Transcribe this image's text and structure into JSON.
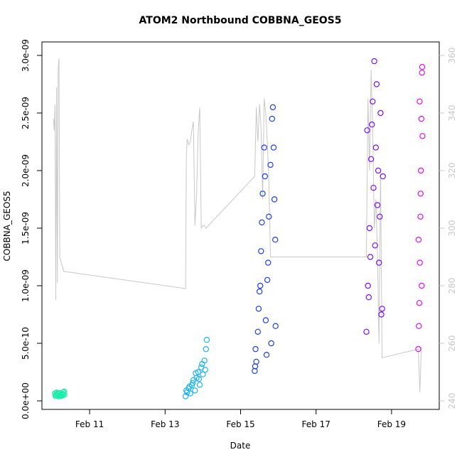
{
  "chart_data": {
    "type": "scatter",
    "title": "ATOM2 Northbound COBBNA_GEOS5",
    "xlabel": "Date",
    "ylabel": "COBBNA_GEOS5",
    "x_unit": "date (2017)",
    "xlim": [
      "2017-02-10T00:00",
      "2017-02-20T00:00"
    ],
    "ylim": [
      0,
      3e-09
    ],
    "y2lim": [
      240,
      360
    ],
    "x_ticks": [
      "2017-02-11",
      "2017-02-13",
      "2017-02-15",
      "2017-02-17",
      "2017-02-19"
    ],
    "x_tick_labels": [
      "Feb 11",
      "Feb 13",
      "Feb 15",
      "Feb 17",
      "Feb 19"
    ],
    "y_ticks": [
      0,
      5e-10,
      1e-09,
      1.5e-09,
      2e-09,
      2.5e-09,
      3e-09
    ],
    "y_tick_labels": [
      "0.0e+00",
      "5.0e-10",
      "1.0e-09",
      "1.5e-09",
      "2.0e-09",
      "2.5e-09",
      "3.0e-09"
    ],
    "y2_ticks": [
      240,
      260,
      280,
      300,
      320,
      340,
      360
    ],
    "y2_tick_labels": [
      "240",
      "260",
      "280",
      "300",
      "320",
      "340",
      "360"
    ],
    "grid": false,
    "legend": "none",
    "marker": "open-circle",
    "series": [
      {
        "color": "#19eea8",
        "x": [
          "2017-02-10T02:00",
          "2017-02-10T02:30",
          "2017-02-10T03:00",
          "2017-02-10T03:30",
          "2017-02-10T04:00",
          "2017-02-10T04:30",
          "2017-02-10T05:00",
          "2017-02-10T05:30",
          "2017-02-10T06:00",
          "2017-02-10T06:30",
          "2017-02-10T07:00",
          "2017-02-10T07:30",
          "2017-02-10T08:00",
          "2017-02-10T02:15",
          "2017-02-10T03:45",
          "2017-02-10T05:15",
          "2017-02-10T06:45",
          "2017-02-10T07:45"
        ],
        "y": [
          6.5e-11,
          5.2e-11,
          7.1e-11,
          4.6e-11,
          6e-11,
          3.9e-11,
          6.8e-11,
          5.1e-11,
          4.2e-11,
          6.3e-11,
          4.8e-11,
          7.5e-11,
          5.6e-11,
          4.4e-11,
          6.6e-11,
          4.7e-11,
          5.9e-11,
          8e-11
        ]
      },
      {
        "color": "#1eb4f0",
        "x": [
          "2017-02-13T13:00",
          "2017-02-13T14:00",
          "2017-02-13T15:00",
          "2017-02-13T16:00",
          "2017-02-13T17:00",
          "2017-02-13T18:00",
          "2017-02-13T19:00",
          "2017-02-13T20:00",
          "2017-02-13T21:00",
          "2017-02-13T22:00",
          "2017-02-13T23:00",
          "2017-02-14T00:00",
          "2017-02-14T01:00",
          "2017-02-14T02:00",
          "2017-02-13T13:30",
          "2017-02-13T15:30",
          "2017-02-13T17:30",
          "2017-02-13T19:30",
          "2017-02-13T21:30",
          "2017-02-13T23:30",
          "2017-02-14T01:30",
          "2017-02-14T02:30"
        ],
        "y": [
          4e-11,
          7.5e-11,
          1.1e-10,
          6.5e-11,
          1.35e-10,
          1.8e-10,
          9e-11,
          2e-10,
          2.5e-10,
          1.4e-10,
          2.9e-10,
          2.3e-10,
          3.5e-10,
          4.5e-10,
          9e-11,
          1.25e-10,
          1.55e-10,
          2.4e-10,
          1.9e-10,
          3.2e-10,
          2.7e-10,
          5.3e-10
        ]
      },
      {
        "color": "#1f3ef0",
        "x": [
          "2017-02-15T09:00",
          "2017-02-15T10:00",
          "2017-02-15T11:00",
          "2017-02-15T12:00",
          "2017-02-15T13:00",
          "2017-02-15T14:00",
          "2017-02-15T15:00",
          "2017-02-15T16:00",
          "2017-02-15T17:00",
          "2017-02-15T18:00",
          "2017-02-15T19:00",
          "2017-02-15T20:00",
          "2017-02-15T21:00",
          "2017-02-15T22:00",
          "2017-02-15T09:30",
          "2017-02-15T11:30",
          "2017-02-15T13:30",
          "2017-02-15T15:30",
          "2017-02-15T17:30",
          "2017-02-15T19:30",
          "2017-02-15T21:30",
          "2017-02-15T09:15",
          "2017-02-15T12:30",
          "2017-02-15T16:30",
          "2017-02-15T20:30",
          "2017-02-15T22:15"
        ],
        "y": [
          2.6e-10,
          3.4e-10,
          6e-10,
          9.5e-10,
          1.3e-09,
          1.8e-09,
          2.2e-09,
          7e-10,
          1.05e-09,
          1.6e-09,
          2.05e-09,
          2.45e-09,
          2.2e-09,
          1.4e-09,
          4.5e-10,
          8e-10,
          1.55e-09,
          1.95e-09,
          1.2e-09,
          5e-10,
          1.75e-09,
          3e-10,
          1e-09,
          4e-10,
          2.55e-09,
          6.5e-10
        ]
      },
      {
        "color": "#7d10f5",
        "x": [
          "2017-02-18T08:00",
          "2017-02-18T09:00",
          "2017-02-18T10:00",
          "2017-02-18T11:00",
          "2017-02-18T12:00",
          "2017-02-18T13:00",
          "2017-02-18T14:00",
          "2017-02-18T15:00",
          "2017-02-18T16:00",
          "2017-02-18T17:00",
          "2017-02-18T18:00",
          "2017-02-18T08:30",
          "2017-02-18T10:30",
          "2017-02-18T12:30",
          "2017-02-18T14:30",
          "2017-02-18T16:30",
          "2017-02-18T17:30",
          "2017-02-18T09:30",
          "2017-02-18T11:30",
          "2017-02-18T13:30",
          "2017-02-18T15:30",
          "2017-02-18T18:30"
        ],
        "y": [
          6e-10,
          1e-09,
          1.5e-09,
          2.1e-09,
          2.6e-09,
          2.95e-09,
          2.2e-09,
          1.7e-09,
          1.2e-09,
          2.5e-09,
          8e-10,
          2.35e-09,
          1.25e-09,
          1.85e-09,
          2.75e-09,
          1.6e-09,
          7.5e-10,
          9e-10,
          2.4e-09,
          1.35e-09,
          2e-09,
          1.95e-09
        ]
      },
      {
        "color": "#e010f0",
        "x": [
          "2017-02-19T17:00",
          "2017-02-19T17:20",
          "2017-02-19T17:40",
          "2017-02-19T18:00",
          "2017-02-19T18:20",
          "2017-02-19T18:40",
          "2017-02-19T19:00",
          "2017-02-19T19:20",
          "2017-02-19T19:40",
          "2017-02-19T17:10",
          "2017-02-19T17:50",
          "2017-02-19T18:30",
          "2017-02-19T19:10",
          "2017-02-19T19:30"
        ],
        "y": [
          4.5e-10,
          6.5e-10,
          8.5e-10,
          1.2e-09,
          1.6e-09,
          2e-09,
          2.45e-09,
          2.85e-09,
          2.3e-09,
          1.4e-09,
          2.6e-09,
          1.8e-09,
          1e-09,
          2.9e-09
        ]
      }
    ],
    "secondary_line": {
      "axis": "right",
      "color": "#c8c8c8",
      "x": [
        "2017-02-10T01:00",
        "2017-02-10T01:30",
        "2017-02-10T02:00",
        "2017-02-10T02:30",
        "2017-02-10T03:00",
        "2017-02-10T03:30",
        "2017-02-10T04:00",
        "2017-02-10T04:30",
        "2017-02-10T05:00",
        "2017-02-10T05:30",
        "2017-02-10T06:00",
        "2017-02-10T06:30",
        "2017-02-10T07:00",
        "2017-02-10T07:30",
        "2017-02-13T13:00",
        "2017-02-13T13:30",
        "2017-02-13T14:00",
        "2017-02-13T15:00",
        "2017-02-13T16:00",
        "2017-02-13T17:00",
        "2017-02-13T18:00",
        "2017-02-13T19:00",
        "2017-02-13T20:00",
        "2017-02-13T21:00",
        "2017-02-13T22:00",
        "2017-02-13T23:00",
        "2017-02-14T00:00",
        "2017-02-14T01:00",
        "2017-02-14T02:00",
        "2017-02-15T09:00",
        "2017-02-15T10:00",
        "2017-02-15T11:00",
        "2017-02-15T12:00",
        "2017-02-15T13:00",
        "2017-02-15T14:00",
        "2017-02-15T15:00",
        "2017-02-15T16:00",
        "2017-02-15T17:00",
        "2017-02-15T18:00",
        "2017-02-15T19:00",
        "2017-02-15T20:00",
        "2017-02-15T21:00",
        "2017-02-15T22:00",
        "2017-02-18T08:00",
        "2017-02-18T09:00",
        "2017-02-18T10:00",
        "2017-02-18T11:00",
        "2017-02-18T12:00",
        "2017-02-18T13:00",
        "2017-02-18T14:00",
        "2017-02-18T15:00",
        "2017-02-18T16:00",
        "2017-02-18T17:00",
        "2017-02-18T18:00",
        "2017-02-19T17:00",
        "2017-02-19T18:00",
        "2017-02-19T19:00"
      ],
      "y": [
        338,
        334,
        343,
        275,
        349,
        281,
        355,
        359,
        290,
        289,
        288,
        287,
        286,
        285,
        279,
        325,
        331,
        329,
        330,
        334,
        337,
        301,
        312,
        333,
        342,
        300,
        301,
        301,
        300,
        318,
        342,
        330,
        343,
        335,
        310,
        345,
        340,
        330,
        316,
        290,
        290,
        290,
        290,
        290,
        345,
        320,
        355,
        335,
        300,
        310,
        292,
        260,
        320,
        255,
        258,
        243,
        259
      ]
    }
  }
}
